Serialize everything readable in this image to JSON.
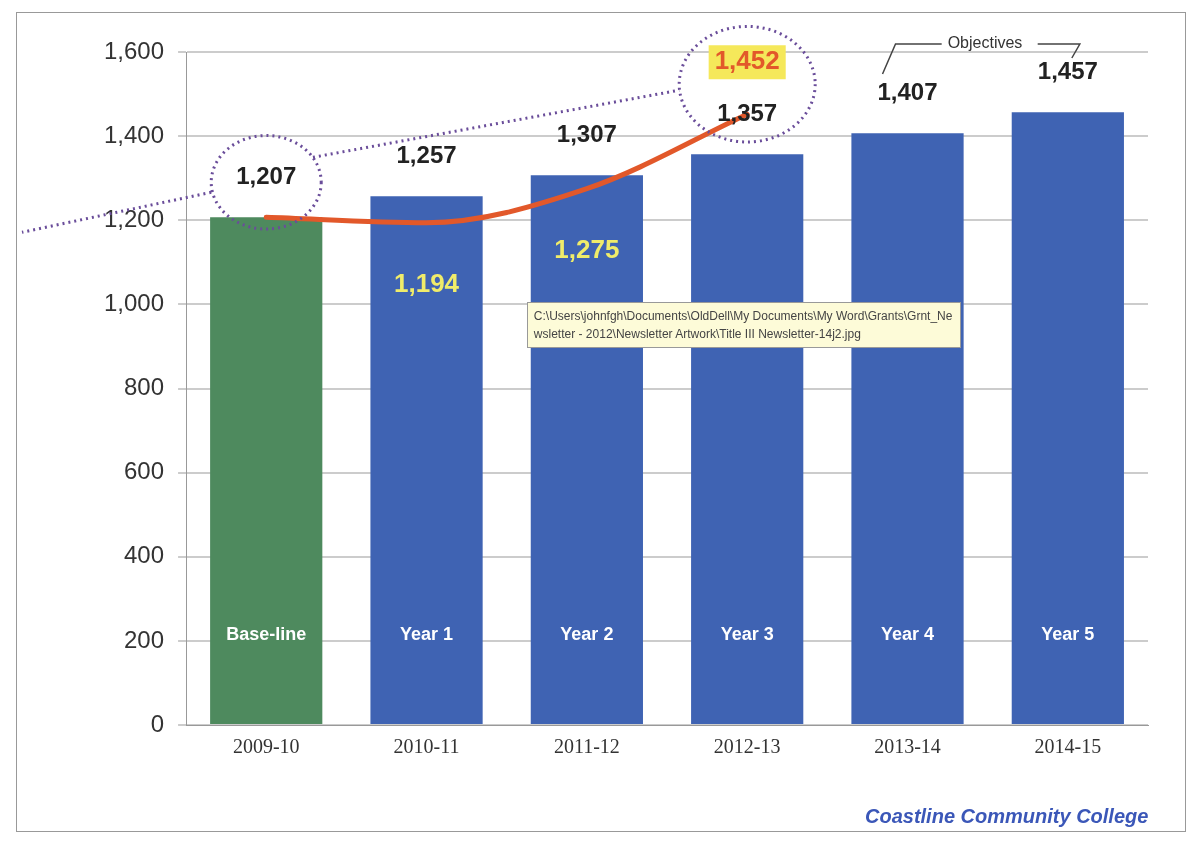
{
  "chart_data": {
    "type": "bar",
    "categories": [
      "2009-10",
      "2010-11",
      "2011-12",
      "2012-13",
      "2013-14",
      "2014-15"
    ],
    "series": [
      {
        "colors": [
          "#4e8a5e",
          "#3f63b3",
          "#3f63b3",
          "#3f63b3",
          "#3f63b3",
          "#3f63b3"
        ],
        "values": [
          1207,
          1257,
          1307,
          1357,
          1407,
          1457
        ],
        "value_labels": [
          "1,207",
          "1,257",
          "1,307",
          "1,357",
          "1,407",
          "1,457"
        ]
      },
      {
        "type": "line",
        "color": "#e2582a",
        "values": [
          1207,
          1194,
          1275,
          1452,
          null,
          null
        ],
        "value_labels": [
          null,
          "1,194",
          "1,275",
          "1,452",
          null,
          null
        ]
      }
    ],
    "ylim": [
      0,
      1600
    ],
    "yticks": [
      {
        "value": 0,
        "label": "0"
      },
      {
        "value": 200,
        "label": "200"
      },
      {
        "value": 400,
        "label": "400"
      },
      {
        "value": 600,
        "label": "600"
      },
      {
        "value": 800,
        "label": "800"
      },
      {
        "value": 1000,
        "label": "1,000"
      },
      {
        "value": 1200,
        "label": "1,200"
      },
      {
        "value": 1400,
        "label": "1,400"
      },
      {
        "value": 1600,
        "label": "1,600"
      }
    ],
    "grid": "y",
    "legend": false,
    "marker": "none",
    "line_style": "solid",
    "annotations": [
      "Base-line",
      "Year 1",
      "Year 2",
      "Year 3",
      "Year 4",
      "Year 5",
      "Objectives",
      "C:\\Users\\johnfgh\\Documents\\OldDell\\My Documents\\My Word\\Grants\\Grnt_Newsletter - 2012\\Newsletter Artwork\\Title III Newsletter-14j2.jpg",
      "Coastline Community College"
    ]
  }
}
